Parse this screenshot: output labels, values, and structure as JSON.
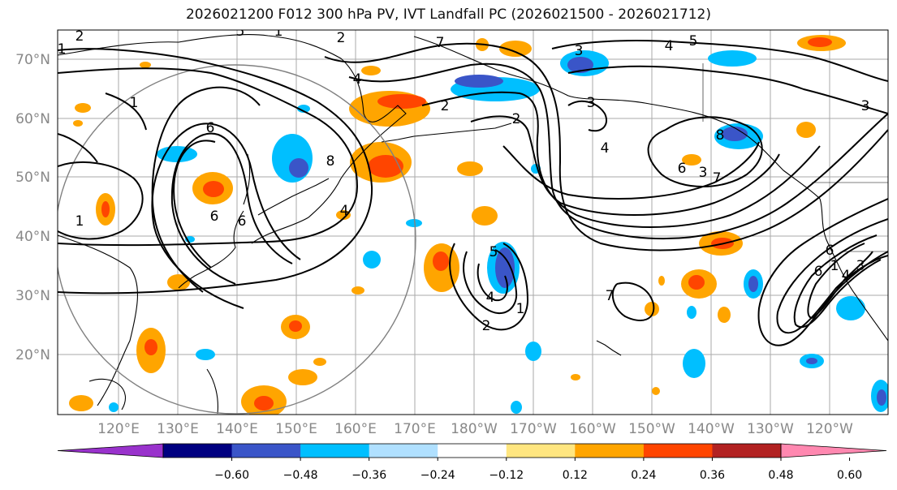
{
  "title": "2026021200 F012 300 hPa PV, IVT Landfall PC (2026021500 - 2026021712)",
  "map": {
    "projection": "PlateCarree",
    "lat_labels": [
      "70°N",
      "60°N",
      "50°N",
      "40°N",
      "30°N",
      "20°N"
    ],
    "lon_labels": [
      "120°E",
      "130°E",
      "140°E",
      "150°E",
      "160°E",
      "170°E",
      "180°W",
      "170°W",
      "160°W",
      "150°W",
      "140°W",
      "130°W",
      "120°W"
    ],
    "contour_labels": [
      "2",
      "1",
      "2",
      "4",
      "4",
      "5",
      "3",
      "2",
      "2",
      "3",
      "1",
      "6",
      "8",
      "6",
      "4",
      "6",
      "1",
      "7",
      "4",
      "8",
      "6",
      "7",
      "3",
      "5",
      "4",
      "1",
      "2",
      "7",
      "6",
      "4",
      "3",
      "1",
      "6",
      "1",
      "5",
      "3"
    ]
  },
  "colorbar": {
    "ticks": [
      "−0.60",
      "−0.48",
      "−0.36",
      "−0.24",
      "−0.12",
      "0.12",
      "0.24",
      "0.36",
      "0.48",
      "0.60"
    ],
    "colors": [
      "#9932cc",
      "#000080",
      "#3a55c8",
      "#00bfff",
      "#b0e0ff",
      "#ffffff",
      "#ffe680",
      "#ffa500",
      "#ff4500",
      "#b22222",
      "#ff88b0"
    ],
    "extend": "both"
  },
  "palette": {
    "pos_low": "#ffe680",
    "pos_mid": "#ffa500",
    "pos_high": "#ff4500",
    "neg_low": "#00bfff",
    "neg_mid": "#3a55c8",
    "grid": "#aaaaaa",
    "coast": "#000000"
  }
}
